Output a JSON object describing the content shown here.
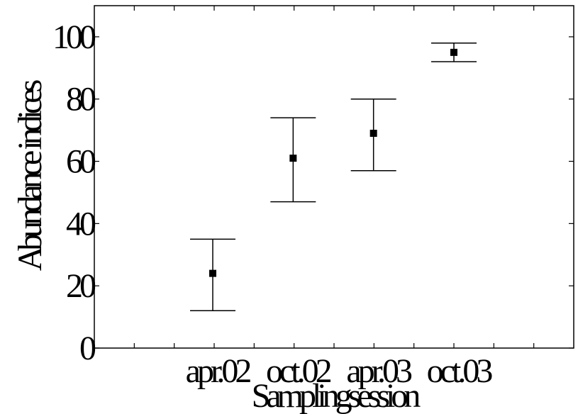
{
  "chart_data": {
    "type": "scatter",
    "title": "",
    "xlabel": "Samplingsession",
    "ylabel": "Abundance indices",
    "categories": [
      "apr.02",
      "oct.02",
      "apr.03",
      "oct.03"
    ],
    "series": [
      {
        "values": [
          24,
          61,
          69,
          95
        ],
        "error_low": [
          12,
          47,
          57,
          92
        ],
        "error_high": [
          35,
          74,
          80,
          98
        ]
      }
    ],
    "ylim": [
      0,
      110
    ],
    "yticks": [
      0,
      20,
      40,
      60,
      80,
      100
    ],
    "grid": false,
    "legend": "none",
    "colors": {
      "marker": "#000000",
      "axis": "#000000"
    }
  }
}
